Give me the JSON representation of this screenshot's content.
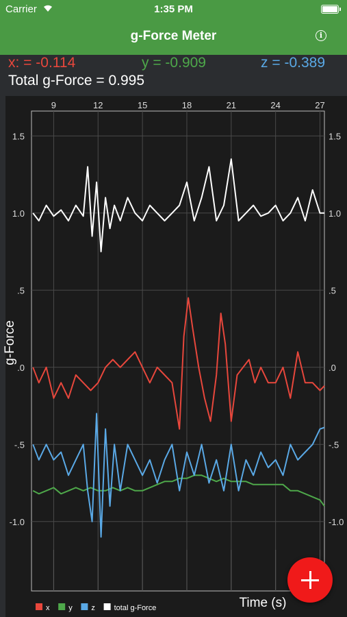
{
  "status": {
    "carrier": "Carrier",
    "time": "1:35 PM"
  },
  "nav": {
    "title": "g-Force Meter",
    "info_icon": "info-icon"
  },
  "readout": {
    "x": "x: = -0.114",
    "y": "y = -0.909",
    "z": "z = -0.389",
    "total": "Total g-Force = 0.995"
  },
  "colors": {
    "x": "#e8473c",
    "y": "#4ea84a",
    "z": "#5aa9e6",
    "total": "#ffffff",
    "nav": "#4a9a44",
    "fab": "#f01a1a"
  },
  "fab": {
    "icon": "plus-icon"
  },
  "chart_data": {
    "type": "line",
    "xlabel": "Time (s)",
    "ylabel": "g-Force",
    "xlim": [
      7.5,
      27.3
    ],
    "ylim": [
      -1.45,
      1.75
    ],
    "x_ticks": [
      "9",
      "12",
      "15",
      "18",
      "21",
      "24",
      "27"
    ],
    "x_tick_values": [
      9,
      12,
      15,
      18,
      21,
      24,
      27
    ],
    "y_ticks": [
      "1.5",
      "1.0",
      ".5",
      ".0",
      "-.5",
      "-1.0"
    ],
    "y_tick_values": [
      1.5,
      1.0,
      0.5,
      0.0,
      -0.5,
      -1.0
    ],
    "grid": true,
    "legend_position": "bottom-left",
    "series": [
      {
        "name": "x",
        "color": "#e8473c",
        "points": [
          [
            7.6,
            0.0
          ],
          [
            8.0,
            -0.1
          ],
          [
            8.5,
            0.0
          ],
          [
            9.0,
            -0.2
          ],
          [
            9.5,
            -0.1
          ],
          [
            10.0,
            -0.2
          ],
          [
            10.5,
            -0.05
          ],
          [
            11.0,
            -0.1
          ],
          [
            11.5,
            -0.15
          ],
          [
            12.0,
            -0.1
          ],
          [
            12.5,
            0.0
          ],
          [
            13.0,
            0.05
          ],
          [
            13.5,
            0.0
          ],
          [
            14.0,
            0.05
          ],
          [
            14.5,
            0.1
          ],
          [
            15.0,
            0.0
          ],
          [
            15.5,
            -0.1
          ],
          [
            16.0,
            0.0
          ],
          [
            16.5,
            -0.05
          ],
          [
            17.0,
            -0.1
          ],
          [
            17.5,
            -0.4
          ],
          [
            17.8,
            0.2
          ],
          [
            18.1,
            0.45
          ],
          [
            18.4,
            0.25
          ],
          [
            18.8,
            0.0
          ],
          [
            19.2,
            -0.2
          ],
          [
            19.6,
            -0.35
          ],
          [
            20.0,
            -0.05
          ],
          [
            20.3,
            0.35
          ],
          [
            20.6,
            0.15
          ],
          [
            21.0,
            -0.35
          ],
          [
            21.4,
            -0.05
          ],
          [
            21.8,
            0.0
          ],
          [
            22.2,
            0.05
          ],
          [
            22.6,
            -0.1
          ],
          [
            23.0,
            0.0
          ],
          [
            23.5,
            -0.1
          ],
          [
            24.0,
            -0.1
          ],
          [
            24.5,
            0.0
          ],
          [
            25.0,
            -0.2
          ],
          [
            25.5,
            0.1
          ],
          [
            26.0,
            -0.1
          ],
          [
            26.5,
            -0.1
          ],
          [
            27.0,
            -0.15
          ],
          [
            27.3,
            -0.12
          ]
        ]
      },
      {
        "name": "y",
        "color": "#4ea84a",
        "points": [
          [
            7.6,
            -0.8
          ],
          [
            8.0,
            -0.82
          ],
          [
            8.5,
            -0.8
          ],
          [
            9.0,
            -0.78
          ],
          [
            9.5,
            -0.82
          ],
          [
            10.0,
            -0.8
          ],
          [
            10.5,
            -0.78
          ],
          [
            11.0,
            -0.8
          ],
          [
            11.5,
            -0.78
          ],
          [
            12.0,
            -0.8
          ],
          [
            12.5,
            -0.8
          ],
          [
            13.0,
            -0.78
          ],
          [
            13.5,
            -0.8
          ],
          [
            14.0,
            -0.78
          ],
          [
            14.5,
            -0.8
          ],
          [
            15.0,
            -0.8
          ],
          [
            15.5,
            -0.78
          ],
          [
            16.0,
            -0.76
          ],
          [
            16.5,
            -0.74
          ],
          [
            17.0,
            -0.74
          ],
          [
            17.5,
            -0.72
          ],
          [
            18.0,
            -0.72
          ],
          [
            18.5,
            -0.7
          ],
          [
            19.0,
            -0.7
          ],
          [
            19.5,
            -0.72
          ],
          [
            20.0,
            -0.74
          ],
          [
            20.5,
            -0.72
          ],
          [
            21.0,
            -0.74
          ],
          [
            21.5,
            -0.74
          ],
          [
            22.0,
            -0.74
          ],
          [
            22.5,
            -0.76
          ],
          [
            23.0,
            -0.76
          ],
          [
            23.5,
            -0.76
          ],
          [
            24.0,
            -0.76
          ],
          [
            24.5,
            -0.76
          ],
          [
            25.0,
            -0.8
          ],
          [
            25.5,
            -0.8
          ],
          [
            26.0,
            -0.82
          ],
          [
            26.5,
            -0.84
          ],
          [
            27.0,
            -0.86
          ],
          [
            27.3,
            -0.9
          ]
        ]
      },
      {
        "name": "z",
        "color": "#5aa9e6",
        "points": [
          [
            7.6,
            -0.5
          ],
          [
            8.0,
            -0.6
          ],
          [
            8.5,
            -0.5
          ],
          [
            9.0,
            -0.6
          ],
          [
            9.5,
            -0.55
          ],
          [
            10.0,
            -0.7
          ],
          [
            10.5,
            -0.6
          ],
          [
            11.0,
            -0.5
          ],
          [
            11.3,
            -0.8
          ],
          [
            11.6,
            -1.0
          ],
          [
            11.9,
            -0.3
          ],
          [
            12.2,
            -1.1
          ],
          [
            12.5,
            -0.4
          ],
          [
            12.8,
            -0.9
          ],
          [
            13.1,
            -0.5
          ],
          [
            13.5,
            -0.8
          ],
          [
            14.0,
            -0.5
          ],
          [
            14.5,
            -0.6
          ],
          [
            15.0,
            -0.7
          ],
          [
            15.5,
            -0.6
          ],
          [
            16.0,
            -0.75
          ],
          [
            16.5,
            -0.6
          ],
          [
            17.0,
            -0.5
          ],
          [
            17.5,
            -0.8
          ],
          [
            18.0,
            -0.55
          ],
          [
            18.5,
            -0.7
          ],
          [
            19.0,
            -0.5
          ],
          [
            19.5,
            -0.75
          ],
          [
            20.0,
            -0.6
          ],
          [
            20.5,
            -0.8
          ],
          [
            21.0,
            -0.5
          ],
          [
            21.5,
            -0.8
          ],
          [
            22.0,
            -0.6
          ],
          [
            22.5,
            -0.7
          ],
          [
            23.0,
            -0.55
          ],
          [
            23.5,
            -0.65
          ],
          [
            24.0,
            -0.6
          ],
          [
            24.5,
            -0.7
          ],
          [
            25.0,
            -0.5
          ],
          [
            25.5,
            -0.6
          ],
          [
            26.0,
            -0.55
          ],
          [
            26.5,
            -0.5
          ],
          [
            27.0,
            -0.4
          ],
          [
            27.3,
            -0.39
          ]
        ]
      },
      {
        "name": "total g-Force",
        "color": "#ffffff",
        "points": [
          [
            7.6,
            1.0
          ],
          [
            8.0,
            0.95
          ],
          [
            8.5,
            1.05
          ],
          [
            9.0,
            0.98
          ],
          [
            9.5,
            1.02
          ],
          [
            10.0,
            0.95
          ],
          [
            10.5,
            1.05
          ],
          [
            11.0,
            0.98
          ],
          [
            11.3,
            1.3
          ],
          [
            11.6,
            0.85
          ],
          [
            11.9,
            1.2
          ],
          [
            12.2,
            0.75
          ],
          [
            12.5,
            1.1
          ],
          [
            12.8,
            0.9
          ],
          [
            13.1,
            1.05
          ],
          [
            13.5,
            0.95
          ],
          [
            14.0,
            1.1
          ],
          [
            14.5,
            1.0
          ],
          [
            15.0,
            0.95
          ],
          [
            15.5,
            1.05
          ],
          [
            16.0,
            1.0
          ],
          [
            16.5,
            0.95
          ],
          [
            17.0,
            1.0
          ],
          [
            17.5,
            1.05
          ],
          [
            18.0,
            1.2
          ],
          [
            18.5,
            0.95
          ],
          [
            19.0,
            1.1
          ],
          [
            19.5,
            1.3
          ],
          [
            20.0,
            0.95
          ],
          [
            20.5,
            1.05
          ],
          [
            21.0,
            1.35
          ],
          [
            21.5,
            0.95
          ],
          [
            22.0,
            1.0
          ],
          [
            22.5,
            1.05
          ],
          [
            23.0,
            0.98
          ],
          [
            23.5,
            1.0
          ],
          [
            24.0,
            1.05
          ],
          [
            24.5,
            0.95
          ],
          [
            25.0,
            1.0
          ],
          [
            25.5,
            1.1
          ],
          [
            26.0,
            0.95
          ],
          [
            26.5,
            1.15
          ],
          [
            27.0,
            1.0
          ],
          [
            27.3,
            1.0
          ]
        ]
      }
    ]
  }
}
